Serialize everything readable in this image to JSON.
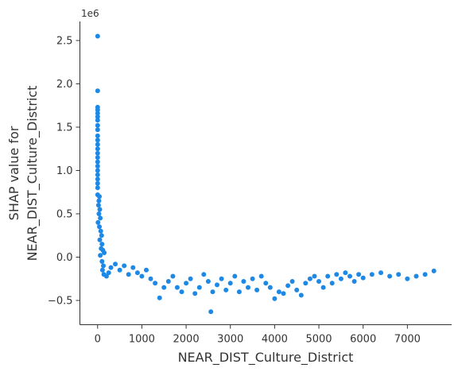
{
  "chart_data": {
    "type": "scatter",
    "xlabel": "NEAR_DIST_Culture_District",
    "ylabel_lines": [
      "SHAP value for",
      "NEAR_DIST_Culture_District"
    ],
    "y_offset_label": "1e6",
    "xlim": [
      -400,
      8000
    ],
    "ylim": [
      -0.78,
      2.72
    ],
    "x_ticks": [
      0,
      1000,
      2000,
      3000,
      4000,
      5000,
      6000,
      7000
    ],
    "x_tick_labels": [
      "0",
      "1000",
      "2000",
      "3000",
      "4000",
      "5000",
      "6000",
      "7000"
    ],
    "y_ticks": [
      -0.5,
      0.0,
      0.5,
      1.0,
      1.5,
      2.0,
      2.5
    ],
    "y_tick_labels": [
      "−0.5",
      "0.0",
      "0.5",
      "1.0",
      "1.5",
      "2.0",
      "2.5"
    ],
    "color": "#1e88e5",
    "points": [
      [
        0,
        2.55
      ],
      [
        0,
        1.92
      ],
      [
        0,
        1.73
      ],
      [
        0,
        1.7
      ],
      [
        0,
        1.66
      ],
      [
        0,
        1.62
      ],
      [
        0,
        1.58
      ],
      [
        0,
        1.52
      ],
      [
        0,
        1.47
      ],
      [
        0,
        1.4
      ],
      [
        0,
        1.35
      ],
      [
        0,
        1.3
      ],
      [
        0,
        1.25
      ],
      [
        0,
        1.2
      ],
      [
        0,
        1.15
      ],
      [
        0,
        1.1
      ],
      [
        0,
        1.05
      ],
      [
        0,
        1.0
      ],
      [
        0,
        0.95
      ],
      [
        0,
        0.9
      ],
      [
        0,
        0.85
      ],
      [
        0,
        0.8
      ],
      [
        0,
        0.72
      ],
      [
        40,
        0.7
      ],
      [
        30,
        0.65
      ],
      [
        20,
        0.6
      ],
      [
        50,
        0.55
      ],
      [
        30,
        0.5
      ],
      [
        60,
        0.45
      ],
      [
        10,
        0.4
      ],
      [
        40,
        0.35
      ],
      [
        70,
        0.3
      ],
      [
        90,
        0.25
      ],
      [
        50,
        0.2
      ],
      [
        100,
        0.15
      ],
      [
        80,
        0.1
      ],
      [
        120,
        0.08
      ],
      [
        150,
        0.05
      ],
      [
        60,
        0.02
      ],
      [
        100,
        -0.05
      ],
      [
        130,
        -0.1
      ],
      [
        110,
        -0.15
      ],
      [
        140,
        -0.2
      ],
      [
        200,
        -0.22
      ],
      [
        250,
        -0.18
      ],
      [
        300,
        -0.12
      ],
      [
        400,
        -0.08
      ],
      [
        500,
        -0.15
      ],
      [
        600,
        -0.1
      ],
      [
        700,
        -0.2
      ],
      [
        800,
        -0.12
      ],
      [
        900,
        -0.18
      ],
      [
        1000,
        -0.22
      ],
      [
        1100,
        -0.15
      ],
      [
        1200,
        -0.25
      ],
      [
        1300,
        -0.3
      ],
      [
        1400,
        -0.47
      ],
      [
        1500,
        -0.35
      ],
      [
        1600,
        -0.28
      ],
      [
        1700,
        -0.22
      ],
      [
        1800,
        -0.35
      ],
      [
        1900,
        -0.4
      ],
      [
        2000,
        -0.3
      ],
      [
        2100,
        -0.25
      ],
      [
        2200,
        -0.42
      ],
      [
        2300,
        -0.35
      ],
      [
        2400,
        -0.2
      ],
      [
        2500,
        -0.28
      ],
      [
        2560,
        -0.63
      ],
      [
        2600,
        -0.4
      ],
      [
        2700,
        -0.32
      ],
      [
        2800,
        -0.25
      ],
      [
        2900,
        -0.38
      ],
      [
        3000,
        -0.3
      ],
      [
        3100,
        -0.22
      ],
      [
        3200,
        -0.4
      ],
      [
        3300,
        -0.28
      ],
      [
        3400,
        -0.35
      ],
      [
        3500,
        -0.25
      ],
      [
        3600,
        -0.38
      ],
      [
        3700,
        -0.22
      ],
      [
        3800,
        -0.3
      ],
      [
        3900,
        -0.35
      ],
      [
        4000,
        -0.48
      ],
      [
        4100,
        -0.4
      ],
      [
        4200,
        -0.42
      ],
      [
        4300,
        -0.33
      ],
      [
        4400,
        -0.28
      ],
      [
        4500,
        -0.38
      ],
      [
        4600,
        -0.44
      ],
      [
        4700,
        -0.3
      ],
      [
        4800,
        -0.25
      ],
      [
        4900,
        -0.22
      ],
      [
        5000,
        -0.28
      ],
      [
        5100,
        -0.35
      ],
      [
        5200,
        -0.22
      ],
      [
        5300,
        -0.3
      ],
      [
        5400,
        -0.2
      ],
      [
        5500,
        -0.25
      ],
      [
        5600,
        -0.18
      ],
      [
        5700,
        -0.22
      ],
      [
        5800,
        -0.28
      ],
      [
        5900,
        -0.2
      ],
      [
        6000,
        -0.24
      ],
      [
        6200,
        -0.2
      ],
      [
        6400,
        -0.18
      ],
      [
        6600,
        -0.22
      ],
      [
        6800,
        -0.2
      ],
      [
        7000,
        -0.25
      ],
      [
        7200,
        -0.22
      ],
      [
        7400,
        -0.2
      ],
      [
        7600,
        -0.16
      ]
    ]
  }
}
